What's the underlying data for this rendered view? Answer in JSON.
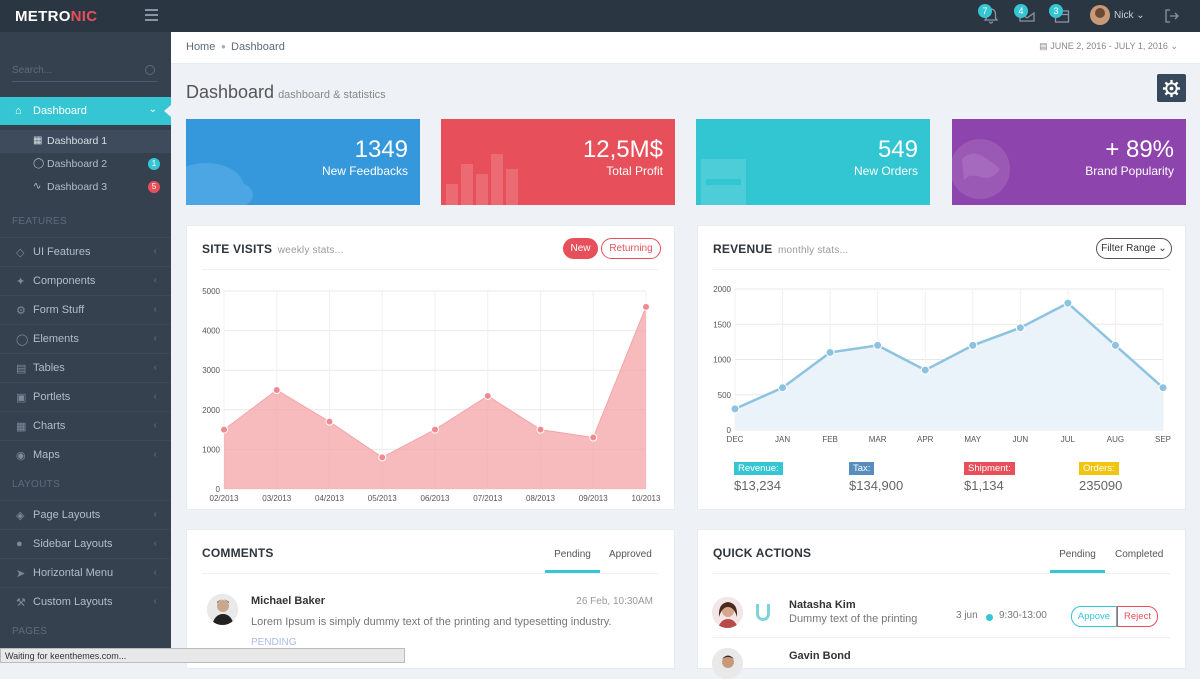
{
  "app": {
    "logo_main": "METRO",
    "logo_accent": "NIC",
    "user_name": "Nick",
    "notifications_badge": "7",
    "inbox_badge": "4",
    "tasks_badge": "3",
    "status_bar": "Waiting for keenthemes.com..."
  },
  "sidebar": {
    "search_placeholder": "Search...",
    "active": "Dashboard",
    "sub_items": [
      {
        "label": "Dashboard 1",
        "badge": ""
      },
      {
        "label": "Dashboard 2",
        "badge": "1"
      },
      {
        "label": "Dashboard 3",
        "badge": "5"
      }
    ],
    "section_features": "FEATURES",
    "features": [
      "UI Features",
      "Components",
      "Form Stuff",
      "Elements",
      "Tables",
      "Portlets",
      "Charts",
      "Maps"
    ],
    "section_layouts": "LAYOUTS",
    "layouts": [
      "Page Layouts",
      "Sidebar Layouts",
      "Horizontal Menu",
      "Custom Layouts"
    ],
    "section_pages": "PAGES"
  },
  "breadcrumb": {
    "home": "Home",
    "current": "Dashboard",
    "date_range": "JUNE 2, 2016 - JULY 1, 2016"
  },
  "page": {
    "title": "Dashboard",
    "subtitle": "dashboard & statistics"
  },
  "stats": [
    {
      "value": "1349",
      "label": "New Feedbacks",
      "color": "#3598dc"
    },
    {
      "value": "12,5M$",
      "label": "Total Profit",
      "color": "#e7505a"
    },
    {
      "value": "549",
      "label": "New Orders",
      "color": "#32c5d2"
    },
    {
      "value": "+ 89%",
      "label": "Brand Popularity",
      "color": "#8e44ad"
    }
  ],
  "site_visits": {
    "title": "SITE VISITS",
    "subtitle": "weekly stats...",
    "btn_new": "New",
    "btn_returning": "Returning"
  },
  "revenue": {
    "title": "REVENUE",
    "subtitle": "monthly stats...",
    "filter": "Filter Range",
    "summary": [
      {
        "label": "Revenue:",
        "value": "$13,234",
        "color": "#36c6d3"
      },
      {
        "label": "Tax:",
        "value": "$134,900",
        "color": "#578ebe"
      },
      {
        "label": "Shipment:",
        "value": "$1,134",
        "color": "#e7505a"
      },
      {
        "label": "Orders:",
        "value": "235090",
        "color": "#f1c40f"
      }
    ]
  },
  "comments": {
    "title": "COMMENTS",
    "tab_pending": "Pending",
    "tab_approved": "Approved",
    "items": [
      {
        "name": "Michael Baker",
        "date": "26 Feb, 10:30AM",
        "text": "Lorem Ipsum is simply dummy text of the printing and typesetting industry.",
        "status": "PENDING"
      }
    ]
  },
  "quick_actions": {
    "title": "QUICK ACTIONS",
    "tab_pending": "Pending",
    "tab_completed": "Completed",
    "items": [
      {
        "name": "Natasha Kim",
        "text": "Dummy text of the printing",
        "date": "3 jun",
        "time": "9:30-13:00",
        "approve": "Appove",
        "reject": "Reject"
      },
      {
        "name": "Gavin Bond"
      }
    ]
  },
  "chart_data": [
    {
      "type": "area",
      "x": [
        "02/2013",
        "03/2013",
        "04/2013",
        "05/2013",
        "06/2013",
        "07/2013",
        "08/2013",
        "09/2013",
        "10/2013"
      ],
      "series": [
        {
          "values": [
            1500,
            2500,
            1700,
            800,
            1500,
            2350,
            1500,
            1300,
            4600
          ]
        }
      ],
      "y_ticks": [
        "0",
        "1000",
        "2000",
        "3000",
        "4000",
        "5000"
      ],
      "ylim": [
        0,
        5000
      ],
      "color": "#f4a4a8",
      "grid": true
    },
    {
      "type": "line",
      "x": [
        "DEC",
        "JAN",
        "FEB",
        "MAR",
        "APR",
        "MAY",
        "JUN",
        "JUL",
        "AUG",
        "SEP"
      ],
      "series": [
        {
          "values": [
            300,
            600,
            1100,
            1200,
            850,
            1200,
            1450,
            1800,
            1200,
            600
          ]
        }
      ],
      "y_ticks": [
        "0",
        "500",
        "1000",
        "1500",
        "2000"
      ],
      "ylim": [
        0,
        2000
      ],
      "color": "#8ec3e0",
      "grid": true
    }
  ]
}
